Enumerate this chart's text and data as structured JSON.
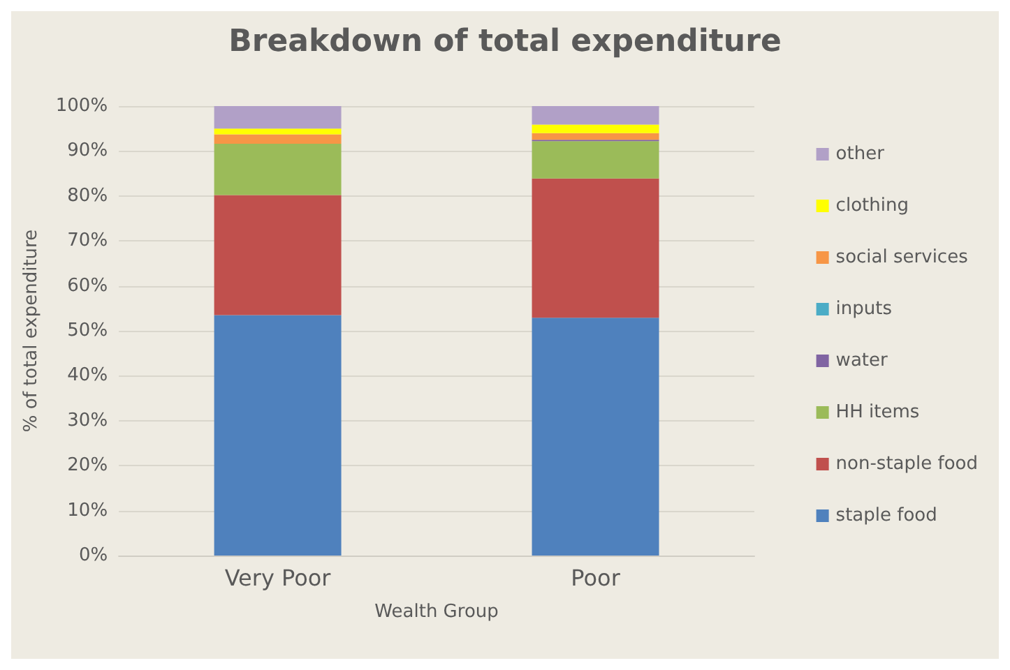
{
  "chart_data": {
    "type": "bar",
    "stacked": true,
    "title": "Breakdown of total expenditure",
    "xlabel": "Wealth Group",
    "ylabel": "% of total expenditure",
    "categories": [
      "Very Poor",
      "Poor"
    ],
    "series": [
      {
        "name": "staple food",
        "color": "#4f81bd",
        "values": [
          53.5,
          52.9
        ]
      },
      {
        "name": "non-staple food",
        "color": "#c0504d",
        "values": [
          26.7,
          31.0
        ]
      },
      {
        "name": "HH items",
        "color": "#9bbb59",
        "values": [
          11.4,
          8.3
        ]
      },
      {
        "name": "water",
        "color": "#8064a2",
        "values": [
          0,
          0.3
        ]
      },
      {
        "name": "inputs",
        "color": "#4bacc6",
        "values": [
          0,
          0
        ]
      },
      {
        "name": "social services",
        "color": "#f79646",
        "values": [
          2.1,
          1.5
        ]
      },
      {
        "name": "clothing",
        "color": "#ffff00",
        "values": [
          1.3,
          1.9
        ]
      },
      {
        "name": "other",
        "color": "#b1a0c7",
        "values": [
          5.0,
          4.1
        ]
      }
    ],
    "ylim": [
      0,
      100
    ],
    "yticks": [
      {
        "value": 0,
        "label": "0%"
      },
      {
        "value": 10,
        "label": "10%"
      },
      {
        "value": 20,
        "label": "20%"
      },
      {
        "value": 30,
        "label": "30%"
      },
      {
        "value": 40,
        "label": "40%"
      },
      {
        "value": 50,
        "label": "50%"
      },
      {
        "value": 60,
        "label": "60%"
      },
      {
        "value": 70,
        "label": "70%"
      },
      {
        "value": 80,
        "label": "80%"
      },
      {
        "value": 90,
        "label": "90%"
      },
      {
        "value": 100,
        "label": "100%"
      }
    ],
    "grid": "y",
    "legend": "right"
  }
}
